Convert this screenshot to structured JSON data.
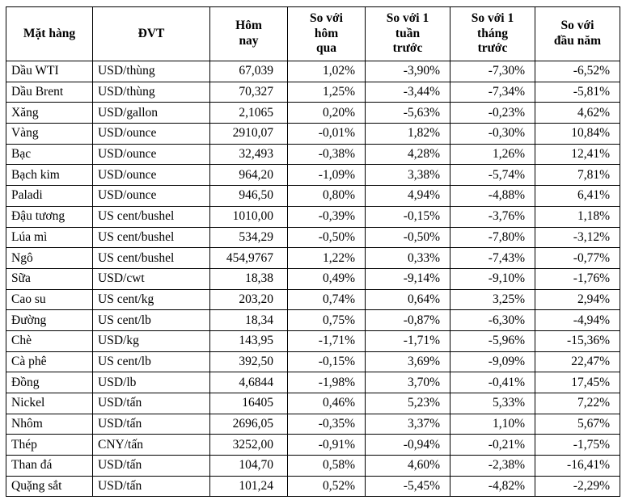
{
  "table": {
    "headers": [
      "Mặt hàng",
      "ĐVT",
      "Hôm\nnay",
      "So với\nhôm\nqua",
      "So với 1\ntuần\ntrước",
      "So với 1\ntháng\ntrước",
      "So với\nđầu năm"
    ],
    "rows": [
      [
        "Dầu WTI",
        "USD/thùng",
        "67,039",
        "1,02%",
        "-3,90%",
        "-7,30%",
        "-6,52%"
      ],
      [
        "Dầu Brent",
        "USD/thùng",
        "70,327",
        "1,25%",
        "-3,44%",
        "-7,34%",
        "-5,81%"
      ],
      [
        "Xăng",
        "USD/gallon",
        "2,1065",
        "0,20%",
        "-5,63%",
        "-0,23%",
        "4,62%"
      ],
      [
        "Vàng",
        "USD/ounce",
        "2910,07",
        "-0,01%",
        "1,82%",
        "-0,30%",
        "10,84%"
      ],
      [
        "Bạc",
        "USD/ounce",
        "32,493",
        "-0,38%",
        "4,28%",
        "1,26%",
        "12,41%"
      ],
      [
        "Bạch kim",
        "USD/ounce",
        "964,20",
        "-1,09%",
        "3,38%",
        "-5,74%",
        "7,81%"
      ],
      [
        "Paladi",
        "USD/ounce",
        "946,50",
        "0,80%",
        "4,94%",
        "-4,88%",
        "6,41%"
      ],
      [
        "Đậu tương",
        "US cent/bushel",
        "1010,00",
        "-0,39%",
        "-0,15%",
        "-3,76%",
        "1,18%"
      ],
      [
        "Lúa mì",
        "US cent/bushel",
        "534,29",
        "-0,50%",
        "-0,50%",
        "-7,80%",
        "-3,12%"
      ],
      [
        "Ngô",
        "US cent/bushel",
        "454,9767",
        "1,22%",
        "0,33%",
        "-7,43%",
        "-0,77%"
      ],
      [
        "Sữa",
        "USD/cwt",
        "18,38",
        "0,49%",
        "-9,14%",
        "-9,10%",
        "-1,76%"
      ],
      [
        "Cao su",
        "US cent/kg",
        "203,20",
        "0,74%",
        "0,64%",
        "3,25%",
        "2,94%"
      ],
      [
        "Đường",
        "US cent/lb",
        "18,34",
        "0,75%",
        "-0,87%",
        "-6,30%",
        "-4,94%"
      ],
      [
        "Chè",
        "USD/kg",
        "143,95",
        "-1,71%",
        "-1,71%",
        "-5,96%",
        "-15,36%"
      ],
      [
        "Cà phê",
        "US cent/lb",
        "392,50",
        "-0,15%",
        "3,69%",
        "-9,09%",
        "22,47%"
      ],
      [
        "Đồng",
        "USD/lb",
        "4,6844",
        "-1,98%",
        "3,70%",
        "-0,41%",
        "17,45%"
      ],
      [
        "Nickel",
        "USD/tấn",
        "16405",
        "0,46%",
        "5,23%",
        "5,33%",
        "7,22%"
      ],
      [
        "Nhôm",
        "USD/tấn",
        "2696,05",
        "-0,35%",
        "3,37%",
        "1,10%",
        "5,67%"
      ],
      [
        "Thép",
        "CNY/tấn",
        "3252,00",
        "-0,91%",
        "-0,94%",
        "-0,21%",
        "-1,75%"
      ],
      [
        "Than đá",
        "USD/tấn",
        "104,70",
        "0,58%",
        "4,60%",
        "-2,38%",
        "-16,41%"
      ],
      [
        "Quặng sắt",
        "USD/tấn",
        "101,24",
        "0,52%",
        "-5,45%",
        "-4,82%",
        "-2,29%"
      ]
    ]
  }
}
